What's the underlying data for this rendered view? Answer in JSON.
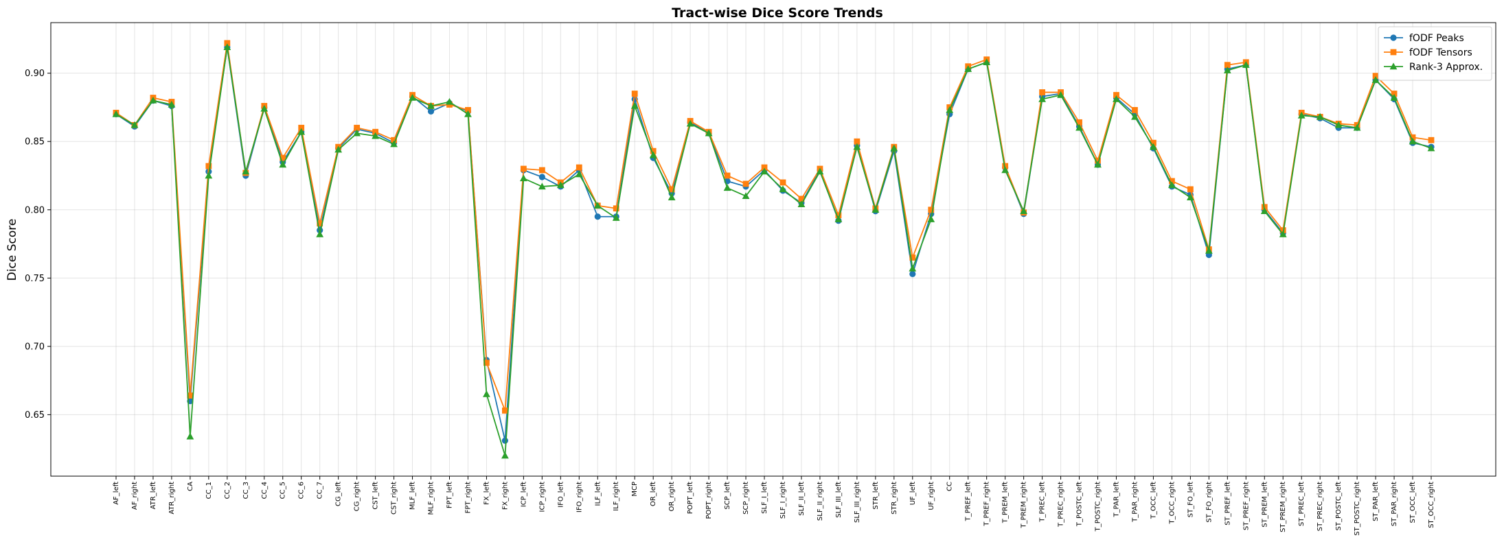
{
  "chart_data": {
    "type": "line",
    "title": "Tract-wise Dice Score Trends",
    "xlabel": "",
    "ylabel": "Dice Score",
    "ylim": [
      0.605,
      0.937
    ],
    "yticks": [
      "0.65",
      "0.70",
      "0.75",
      "0.80",
      "0.85",
      "0.90"
    ],
    "grid": true,
    "legend_position": "top-right",
    "categories": [
      "AF_left",
      "AF_right",
      "ATR_left",
      "ATR_right",
      "CA",
      "CC_1",
      "CC_2",
      "CC_3",
      "CC_4",
      "CC_5",
      "CC_6",
      "CC_7",
      "CG_left",
      "CG_right",
      "CST_left",
      "CST_right",
      "MLF_left",
      "MLF_right",
      "FPT_left",
      "FPT_right",
      "FX_left",
      "FX_right",
      "ICP_left",
      "ICP_right",
      "IFO_left",
      "IFO_right",
      "ILF_left",
      "ILF_right",
      "MCP",
      "OR_left",
      "OR_right",
      "POPT_left",
      "POPT_right",
      "SCP_left",
      "SCP_right",
      "SLF_I_left",
      "SLF_I_right",
      "SLF_II_left",
      "SLF_II_right",
      "SLF_III_left",
      "SLF_III_right",
      "STR_left",
      "STR_right",
      "UF_left",
      "UF_right",
      "CC",
      "T_PREF_left",
      "T_PREF_right",
      "T_PREM_left",
      "T_PREM_right",
      "T_PREC_left",
      "T_PREC_right",
      "T_POSTC_left",
      "T_POSTC_right",
      "T_PAR_left",
      "T_PAR_right",
      "T_OCC_left",
      "T_OCC_right",
      "ST_FO_left",
      "ST_FO_right",
      "ST_PREF_left",
      "ST_PREF_right",
      "ST_PREM_left",
      "ST_PREM_right",
      "ST_PREC_left",
      "ST_PREC_right",
      "ST_POSTC_left",
      "ST_POSTC_right",
      "ST_PAR_left",
      "ST_PAR_right",
      "ST_OCC_left",
      "ST_OCC_right"
    ],
    "series": [
      {
        "name": "fODF Peaks",
        "color": "#1f77b4",
        "marker": "circle",
        "values": [
          0.87,
          0.861,
          0.88,
          0.876,
          0.66,
          0.828,
          0.919,
          0.825,
          0.875,
          0.835,
          0.857,
          0.785,
          0.845,
          0.859,
          0.856,
          0.849,
          0.883,
          0.872,
          0.878,
          0.872,
          0.69,
          0.631,
          0.829,
          0.824,
          0.817,
          0.829,
          0.795,
          0.795,
          0.881,
          0.838,
          0.812,
          0.864,
          0.856,
          0.821,
          0.817,
          0.829,
          0.814,
          0.805,
          0.829,
          0.792,
          0.847,
          0.799,
          0.843,
          0.753,
          0.797,
          0.87,
          0.903,
          0.908,
          0.831,
          0.797,
          0.883,
          0.885,
          0.861,
          0.833,
          0.882,
          0.87,
          0.845,
          0.817,
          0.811,
          0.767,
          0.903,
          0.906,
          0.8,
          0.783,
          0.87,
          0.867,
          0.86,
          0.86,
          0.895,
          0.881,
          0.849,
          0.846
        ]
      },
      {
        "name": "fODF Tensors",
        "color": "#ff7f0e",
        "marker": "square",
        "values": [
          0.871,
          0.862,
          0.882,
          0.879,
          0.664,
          0.832,
          0.922,
          0.827,
          0.876,
          0.838,
          0.86,
          0.79,
          0.846,
          0.86,
          0.857,
          0.851,
          0.884,
          0.876,
          0.877,
          0.873,
          0.688,
          0.653,
          0.83,
          0.829,
          0.82,
          0.831,
          0.803,
          0.801,
          0.885,
          0.843,
          0.815,
          0.865,
          0.857,
          0.825,
          0.819,
          0.831,
          0.82,
          0.808,
          0.83,
          0.796,
          0.85,
          0.801,
          0.846,
          0.765,
          0.8,
          0.875,
          0.905,
          0.91,
          0.832,
          0.798,
          0.886,
          0.886,
          0.864,
          0.836,
          0.884,
          0.873,
          0.849,
          0.821,
          0.815,
          0.771,
          0.906,
          0.908,
          0.802,
          0.785,
          0.871,
          0.868,
          0.863,
          0.862,
          0.898,
          0.885,
          0.853,
          0.851
        ]
      },
      {
        "name": "Rank-3 Approx.",
        "color": "#2ca02c",
        "marker": "triangle",
        "values": [
          0.87,
          0.862,
          0.88,
          0.877,
          0.634,
          0.825,
          0.919,
          0.828,
          0.874,
          0.833,
          0.857,
          0.782,
          0.844,
          0.856,
          0.854,
          0.848,
          0.882,
          0.876,
          0.879,
          0.87,
          0.665,
          0.62,
          0.823,
          0.817,
          0.818,
          0.826,
          0.803,
          0.794,
          0.876,
          0.84,
          0.809,
          0.863,
          0.856,
          0.816,
          0.81,
          0.828,
          0.815,
          0.804,
          0.828,
          0.793,
          0.846,
          0.8,
          0.845,
          0.757,
          0.793,
          0.873,
          0.903,
          0.908,
          0.829,
          0.799,
          0.881,
          0.884,
          0.86,
          0.833,
          0.881,
          0.868,
          0.846,
          0.818,
          0.809,
          0.77,
          0.902,
          0.906,
          0.799,
          0.782,
          0.869,
          0.868,
          0.862,
          0.86,
          0.895,
          0.882,
          0.85,
          0.845
        ]
      }
    ]
  }
}
